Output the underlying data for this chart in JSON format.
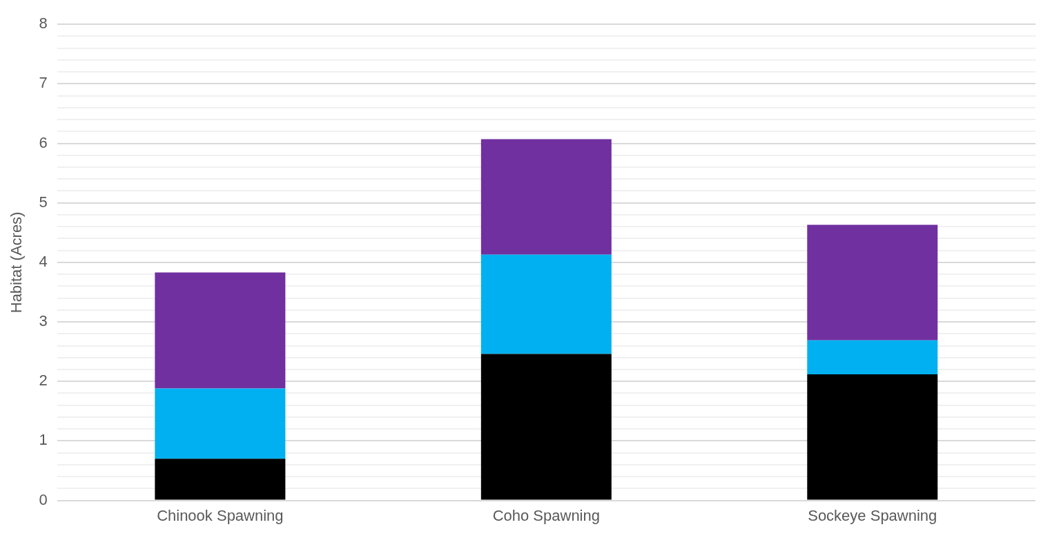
{
  "chart_data": {
    "type": "bar",
    "stacked": true,
    "ylabel": "Habitat (Acres)",
    "categories": [
      "Chinook Spawning",
      "Coho Spawning",
      "Sockeye Spawning"
    ],
    "series": [
      {
        "color": "#000000",
        "values": [
          0.7,
          2.46,
          2.12
        ]
      },
      {
        "color": "#00b0f0",
        "values": [
          1.18,
          1.67,
          0.57
        ]
      },
      {
        "color": "#7030a0",
        "values": [
          1.95,
          1.94,
          1.94
        ]
      }
    ],
    "ylim": [
      0,
      8
    ],
    "yticks": [
      0,
      {
        "value": 0.2,
        "label": null
      },
      {
        "value": 0.4,
        "label": null
      },
      {
        "value": 0.6,
        "label": null
      },
      {
        "value": 0.8,
        "label": null
      },
      1,
      {
        "value": 1.2,
        "label": null
      },
      {
        "value": 1.4,
        "label": null
      },
      {
        "value": 1.6,
        "label": null
      },
      {
        "value": 1.8,
        "label": null
      },
      2,
      {
        "value": 2.2,
        "label": null
      },
      {
        "value": 2.4,
        "label": null
      },
      {
        "value": 2.6,
        "label": null
      },
      {
        "value": 2.8,
        "label": null
      },
      3,
      {
        "value": 3.2,
        "label": null
      },
      {
        "value": 3.4,
        "label": null
      },
      {
        "value": 3.6,
        "label": null
      },
      {
        "value": 3.8,
        "label": null
      },
      4,
      {
        "value": 4.2,
        "label": null
      },
      {
        "value": 4.4,
        "label": null
      },
      {
        "value": 4.6,
        "label": null
      },
      {
        "value": 4.8,
        "label": null
      },
      5,
      {
        "value": 5.2,
        "label": null
      },
      {
        "value": 5.4,
        "label": null
      },
      {
        "value": 5.6,
        "label": null
      },
      {
        "value": 5.8,
        "label": null
      },
      6,
      {
        "value": 6.2,
        "label": null
      },
      {
        "value": 6.4,
        "label": null
      },
      {
        "value": 6.6,
        "label": null
      },
      {
        "value": 6.8,
        "label": null
      },
      7,
      {
        "value": 7.2,
        "label": null
      },
      {
        "value": 7.4,
        "label": null
      },
      {
        "value": 7.6,
        "label": null
      },
      {
        "value": 7.8,
        "label": null
      },
      8
    ],
    "grid": "y",
    "legend": false
  }
}
